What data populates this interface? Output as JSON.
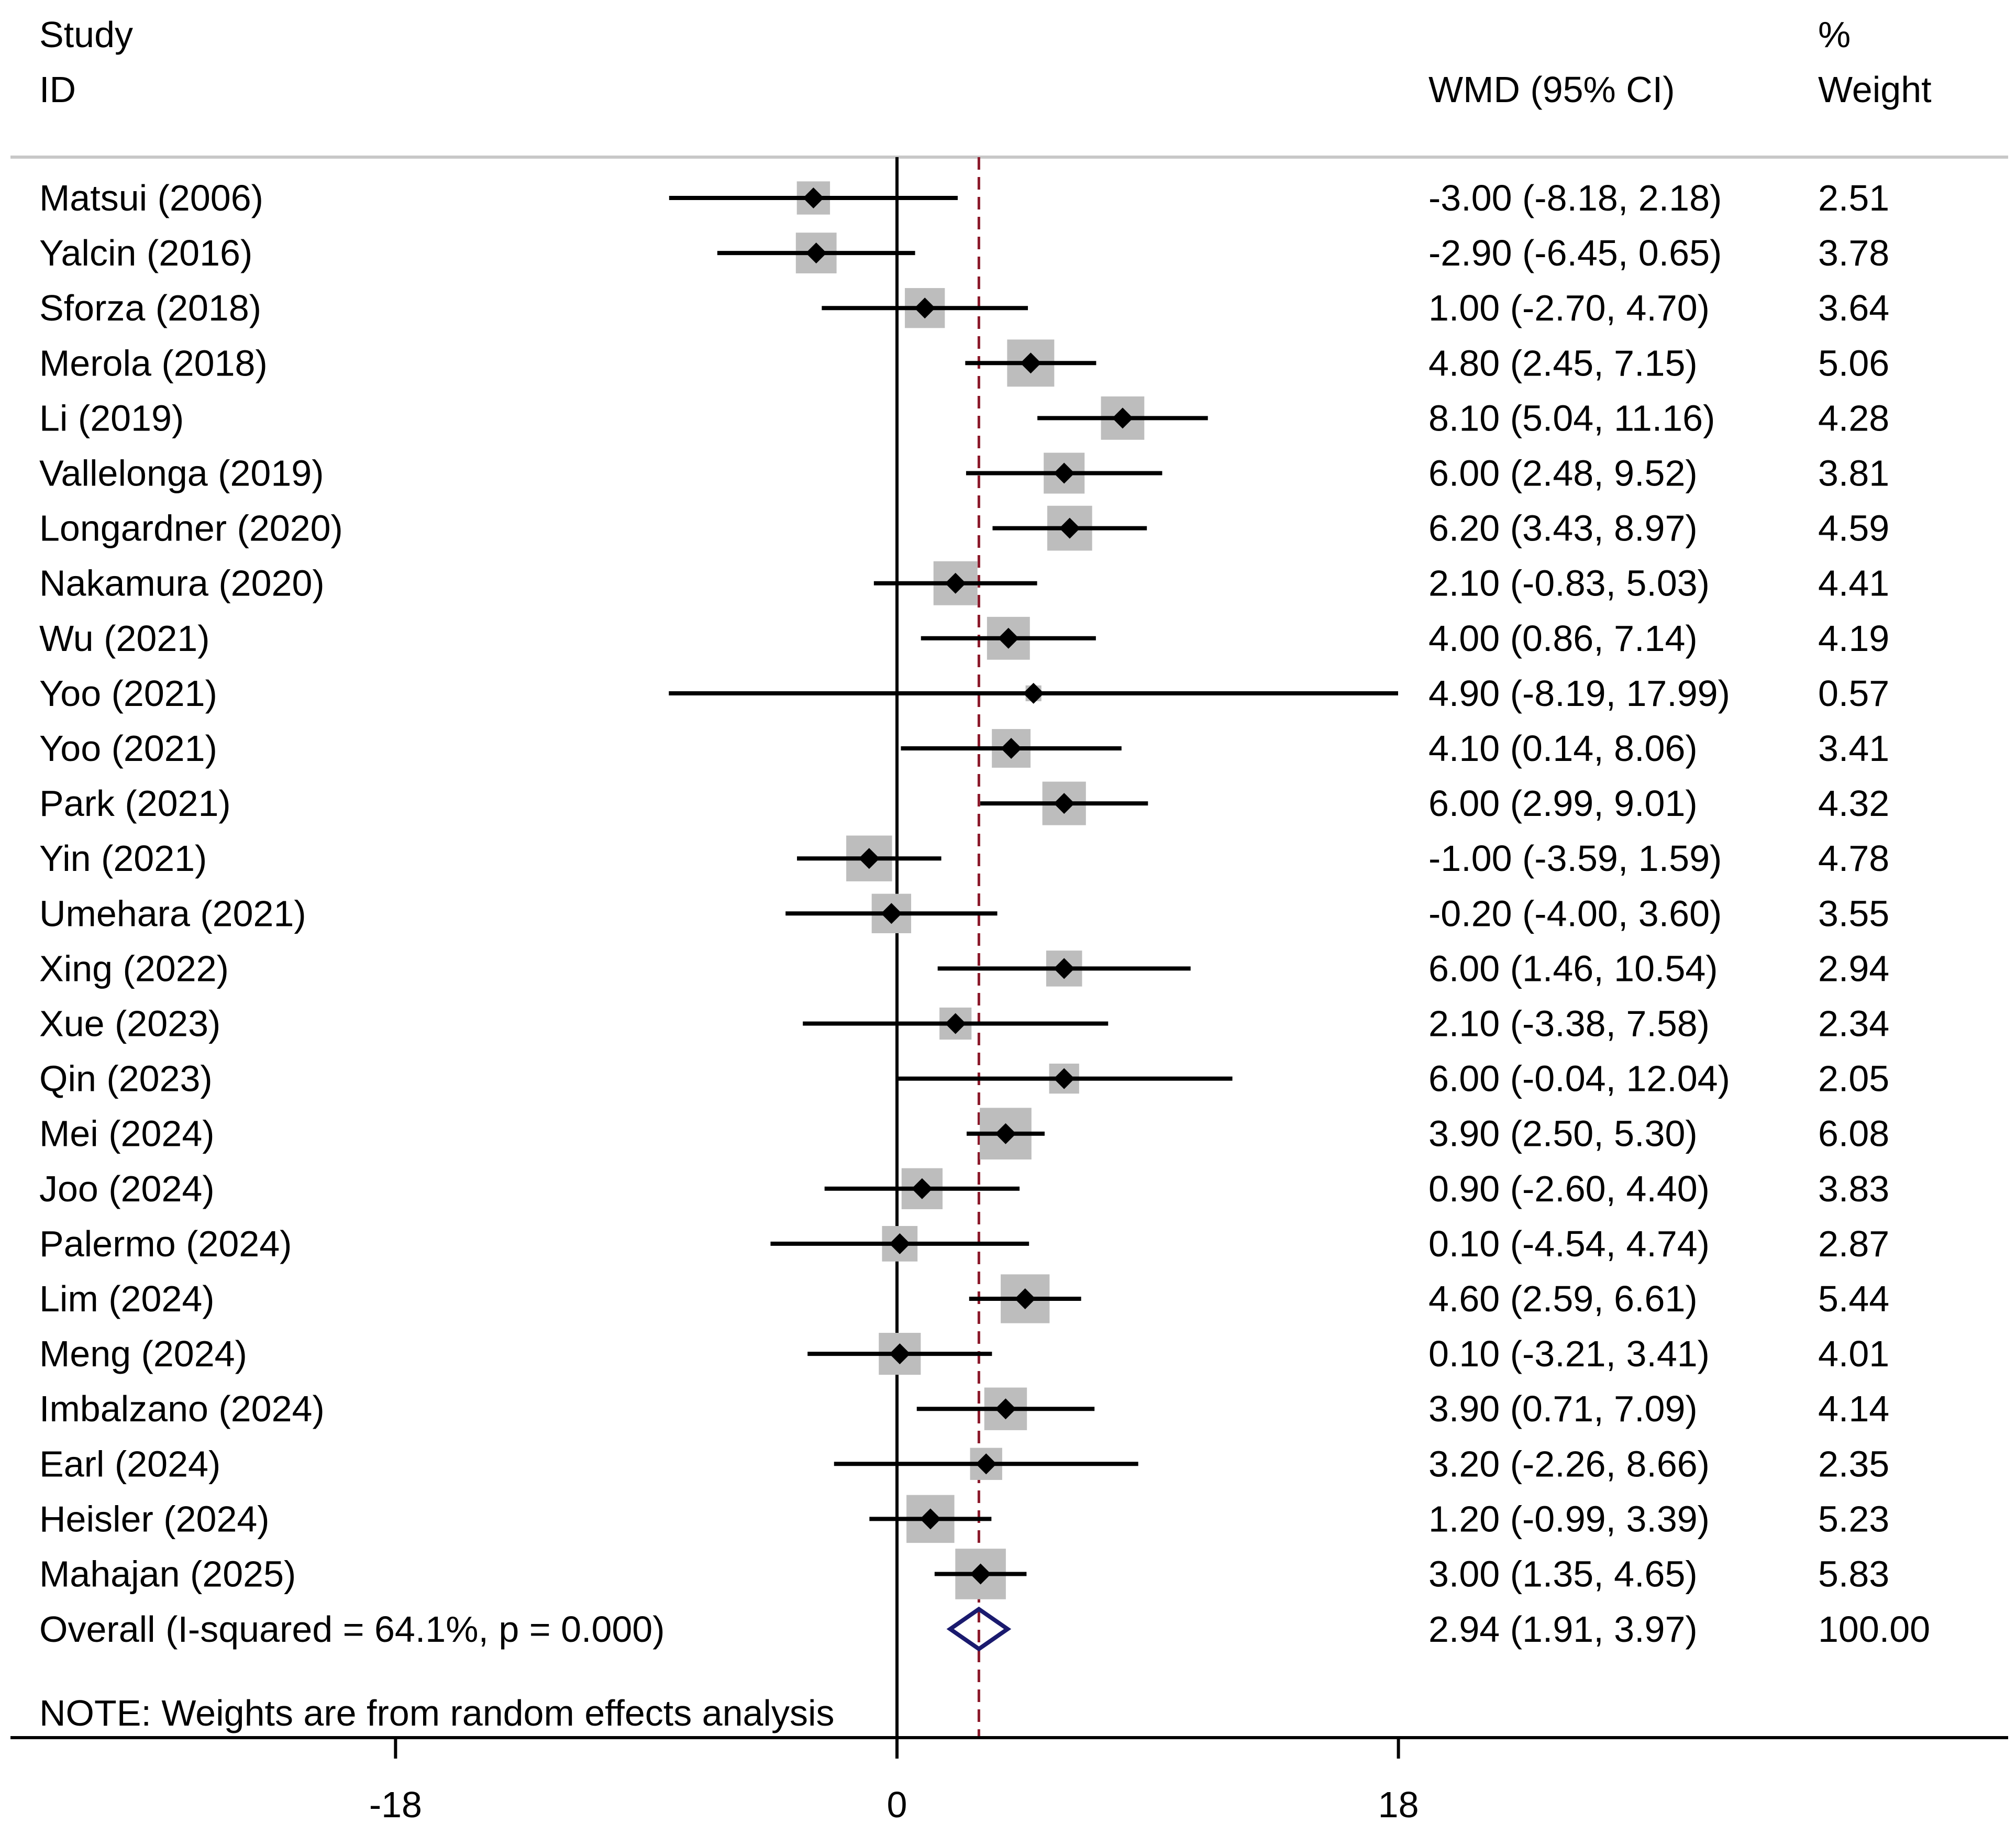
{
  "chart_data": {
    "type": "forest",
    "headers": {
      "study_line1": "Study",
      "study_line2": "ID",
      "effect": "WMD (95% CI)",
      "weight_line1": "%",
      "weight_line2": "Weight"
    },
    "studies": [
      {
        "id": "Matsui (2006)",
        "est": -3.0,
        "lo": -8.18,
        "hi": 2.18,
        "weight": 2.51,
        "ci_text": "-3.00 (-8.18, 2.18)",
        "weight_text": "2.51"
      },
      {
        "id": "Yalcin (2016)",
        "est": -2.9,
        "lo": -6.45,
        "hi": 0.65,
        "weight": 3.78,
        "ci_text": "-2.90 (-6.45, 0.65)",
        "weight_text": "3.78"
      },
      {
        "id": "Sforza (2018)",
        "est": 1.0,
        "lo": -2.7,
        "hi": 4.7,
        "weight": 3.64,
        "ci_text": "1.00 (-2.70, 4.70)",
        "weight_text": "3.64"
      },
      {
        "id": "Merola (2018)",
        "est": 4.8,
        "lo": 2.45,
        "hi": 7.15,
        "weight": 5.06,
        "ci_text": "4.80 (2.45, 7.15)",
        "weight_text": "5.06"
      },
      {
        "id": "Li (2019)",
        "est": 8.1,
        "lo": 5.04,
        "hi": 11.16,
        "weight": 4.28,
        "ci_text": "8.10 (5.04, 11.16)",
        "weight_text": "4.28"
      },
      {
        "id": "Vallelonga (2019)",
        "est": 6.0,
        "lo": 2.48,
        "hi": 9.52,
        "weight": 3.81,
        "ci_text": "6.00 (2.48, 9.52)",
        "weight_text": "3.81"
      },
      {
        "id": "Longardner (2020)",
        "est": 6.2,
        "lo": 3.43,
        "hi": 8.97,
        "weight": 4.59,
        "ci_text": "6.20 (3.43, 8.97)",
        "weight_text": "4.59"
      },
      {
        "id": "Nakamura (2020)",
        "est": 2.1,
        "lo": -0.83,
        "hi": 5.03,
        "weight": 4.41,
        "ci_text": "2.10 (-0.83, 5.03)",
        "weight_text": "4.41"
      },
      {
        "id": "Wu (2021)",
        "est": 4.0,
        "lo": 0.86,
        "hi": 7.14,
        "weight": 4.19,
        "ci_text": "4.00 (0.86, 7.14)",
        "weight_text": "4.19"
      },
      {
        "id": "Yoo (2021)",
        "est": 4.9,
        "lo": -8.19,
        "hi": 17.99,
        "weight": 0.57,
        "ci_text": "4.90 (-8.19, 17.99)",
        "weight_text": "0.57"
      },
      {
        "id": "Yoo (2021)",
        "est": 4.1,
        "lo": 0.14,
        "hi": 8.06,
        "weight": 3.41,
        "ci_text": "4.10 (0.14, 8.06)",
        "weight_text": "3.41"
      },
      {
        "id": "Park (2021)",
        "est": 6.0,
        "lo": 2.99,
        "hi": 9.01,
        "weight": 4.32,
        "ci_text": "6.00 (2.99, 9.01)",
        "weight_text": "4.32"
      },
      {
        "id": "Yin (2021)",
        "est": -1.0,
        "lo": -3.59,
        "hi": 1.59,
        "weight": 4.78,
        "ci_text": "-1.00 (-3.59, 1.59)",
        "weight_text": "4.78"
      },
      {
        "id": "Umehara (2021)",
        "est": -0.2,
        "lo": -4.0,
        "hi": 3.6,
        "weight": 3.55,
        "ci_text": "-0.20 (-4.00, 3.60)",
        "weight_text": "3.55"
      },
      {
        "id": "Xing (2022)",
        "est": 6.0,
        "lo": 1.46,
        "hi": 10.54,
        "weight": 2.94,
        "ci_text": "6.00 (1.46, 10.54)",
        "weight_text": "2.94"
      },
      {
        "id": "Xue (2023)",
        "est": 2.1,
        "lo": -3.38,
        "hi": 7.58,
        "weight": 2.34,
        "ci_text": "2.10 (-3.38, 7.58)",
        "weight_text": "2.34"
      },
      {
        "id": "Qin (2023)",
        "est": 6.0,
        "lo": -0.04,
        "hi": 12.04,
        "weight": 2.05,
        "ci_text": "6.00 (-0.04, 12.04)",
        "weight_text": "2.05"
      },
      {
        "id": "Mei (2024)",
        "est": 3.9,
        "lo": 2.5,
        "hi": 5.3,
        "weight": 6.08,
        "ci_text": "3.90 (2.50, 5.30)",
        "weight_text": "6.08"
      },
      {
        "id": "Joo (2024)",
        "est": 0.9,
        "lo": -2.6,
        "hi": 4.4,
        "weight": 3.83,
        "ci_text": "0.90 (-2.60, 4.40)",
        "weight_text": "3.83"
      },
      {
        "id": "Palermo (2024)",
        "est": 0.1,
        "lo": -4.54,
        "hi": 4.74,
        "weight": 2.87,
        "ci_text": "0.10 (-4.54, 4.74)",
        "weight_text": "2.87"
      },
      {
        "id": "Lim (2024)",
        "est": 4.6,
        "lo": 2.59,
        "hi": 6.61,
        "weight": 5.44,
        "ci_text": "4.60 (2.59, 6.61)",
        "weight_text": "5.44"
      },
      {
        "id": "Meng (2024)",
        "est": 0.1,
        "lo": -3.21,
        "hi": 3.41,
        "weight": 4.01,
        "ci_text": "0.10 (-3.21, 3.41)",
        "weight_text": "4.01"
      },
      {
        "id": "Imbalzano (2024)",
        "est": 3.9,
        "lo": 0.71,
        "hi": 7.09,
        "weight": 4.14,
        "ci_text": "3.90 (0.71, 7.09)",
        "weight_text": "4.14"
      },
      {
        "id": "Earl (2024)",
        "est": 3.2,
        "lo": -2.26,
        "hi": 8.66,
        "weight": 2.35,
        "ci_text": "3.20 (-2.26, 8.66)",
        "weight_text": "2.35"
      },
      {
        "id": "Heisler (2024)",
        "est": 1.2,
        "lo": -0.99,
        "hi": 3.39,
        "weight": 5.23,
        "ci_text": "1.20 (-0.99, 3.39)",
        "weight_text": "5.23"
      },
      {
        "id": "Mahajan (2025)",
        "est": 3.0,
        "lo": 1.35,
        "hi": 4.65,
        "weight": 5.83,
        "ci_text": "3.00 (1.35, 4.65)",
        "weight_text": "5.83"
      }
    ],
    "overall": {
      "label": "Overall  (I-squared = 64.1%, p = 0.000)",
      "est": 2.94,
      "lo": 1.91,
      "hi": 3.97,
      "ci_text": "2.94 (1.91, 3.97)",
      "weight_text": "100.00"
    },
    "note": "NOTE: Weights are from random effects analysis",
    "x_axis": {
      "ticks": [
        -18,
        0,
        18
      ],
      "tick_labels": [
        "-18",
        "0",
        "18"
      ],
      "null_line": 0
    },
    "colors": {
      "box": "#bdbdbd",
      "ci_line": "#000000",
      "point": "#000000",
      "overall_diamond": "#1a1a6e",
      "overall_dashed_line": "#8b1a2b",
      "rule": "#c8c8c8"
    }
  }
}
